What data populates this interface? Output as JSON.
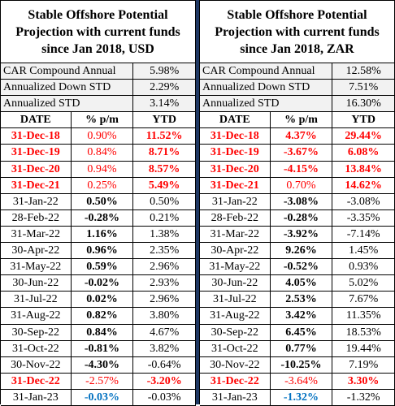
{
  "usd": {
    "title_line1": "Stable Offshore Potential",
    "title_line2": "Projection with current funds",
    "title_line3": "since Jan 2018, USD",
    "stats": [
      {
        "label": "CAR Compound Annual",
        "value": "5.98%"
      },
      {
        "label": "Annualized Down STD",
        "value": "2.29%"
      },
      {
        "label": "Annualized STD",
        "value": "3.14%"
      }
    ],
    "headers": [
      "DATE",
      "% p/m",
      "YTD"
    ],
    "rows": [
      {
        "date": "31-Dec-18",
        "pm": "0.90%",
        "ytd": "11.52%"
      },
      {
        "date": "31-Dec-19",
        "pm": "0.84%",
        "ytd": "8.71%"
      },
      {
        "date": "31-Dec-20",
        "pm": "0.94%",
        "ytd": "8.57%"
      },
      {
        "date": "31-Dec-21",
        "pm": "0.25%",
        "ytd": "5.49%"
      },
      {
        "date": "31-Jan-22",
        "pm": "0.50%",
        "ytd": "0.50%"
      },
      {
        "date": "28-Feb-22",
        "pm": "-0.28%",
        "ytd": "0.21%"
      },
      {
        "date": "31-Mar-22",
        "pm": "1.16%",
        "ytd": "1.38%"
      },
      {
        "date": "30-Apr-22",
        "pm": "0.96%",
        "ytd": "2.35%"
      },
      {
        "date": "31-May-22",
        "pm": "0.59%",
        "ytd": "2.96%"
      },
      {
        "date": "30-Jun-22",
        "pm": "-0.02%",
        "ytd": "2.93%"
      },
      {
        "date": "31-Jul-22",
        "pm": "0.02%",
        "ytd": "2.96%"
      },
      {
        "date": "31-Aug-22",
        "pm": "0.82%",
        "ytd": "3.80%"
      },
      {
        "date": "30-Sep-22",
        "pm": "0.84%",
        "ytd": "4.67%"
      },
      {
        "date": "31-Oct-22",
        "pm": "-0.81%",
        "ytd": "3.82%"
      },
      {
        "date": "30-Nov-22",
        "pm": "-4.30%",
        "ytd": "-0.64%"
      },
      {
        "date": "31-Dec-22",
        "pm": "-2.57%",
        "ytd": "-3.20%"
      },
      {
        "date": "31-Jan-23",
        "pm": "-0.03%",
        "ytd": "-0.03%"
      }
    ]
  },
  "zar": {
    "title_line1": "Stable Offshore Potential",
    "title_line2": "Projection with current funds",
    "title_line3": "since Jan 2018, ZAR",
    "stats": [
      {
        "label": "CAR Compound Annual",
        "value": "12.58%"
      },
      {
        "label": "Annualized Down STD",
        "value": "7.51%"
      },
      {
        "label": "Annualized STD",
        "value": "16.30%"
      }
    ],
    "headers": [
      "DATE",
      "% p/m",
      "YTD"
    ],
    "rows": [
      {
        "date": "31-Dec-18",
        "pm": "4.37%",
        "ytd": "29.44%"
      },
      {
        "date": "31-Dec-19",
        "pm": "-3.67%",
        "ytd": "6.08%"
      },
      {
        "date": "31-Dec-20",
        "pm": "-4.15%",
        "ytd": "13.84%"
      },
      {
        "date": "31-Dec-21",
        "pm": "0.70%",
        "ytd": "14.62%"
      },
      {
        "date": "31-Jan-22",
        "pm": "-3.08%",
        "ytd": "-3.08%"
      },
      {
        "date": "28-Feb-22",
        "pm": "-0.28%",
        "ytd": "-3.35%"
      },
      {
        "date": "31-Mar-22",
        "pm": "-3.92%",
        "ytd": "-7.14%"
      },
      {
        "date": "30-Apr-22",
        "pm": "9.26%",
        "ytd": "1.45%"
      },
      {
        "date": "31-May-22",
        "pm": "-0.52%",
        "ytd": "0.93%"
      },
      {
        "date": "30-Jun-22",
        "pm": "4.05%",
        "ytd": "5.02%"
      },
      {
        "date": "31-Jul-22",
        "pm": "2.53%",
        "ytd": "7.67%"
      },
      {
        "date": "31-Aug-22",
        "pm": "3.42%",
        "ytd": "11.35%"
      },
      {
        "date": "30-Sep-22",
        "pm": "6.45%",
        "ytd": "18.53%"
      },
      {
        "date": "31-Oct-22",
        "pm": "0.77%",
        "ytd": "19.44%"
      },
      {
        "date": "30-Nov-22",
        "pm": "-10.25%",
        "ytd": "7.19%"
      },
      {
        "date": "31-Dec-22",
        "pm": "-3.64%",
        "ytd": "3.30%"
      },
      {
        "date": "31-Jan-23",
        "pm": "-1.32%",
        "ytd": "-1.32%"
      }
    ]
  }
}
